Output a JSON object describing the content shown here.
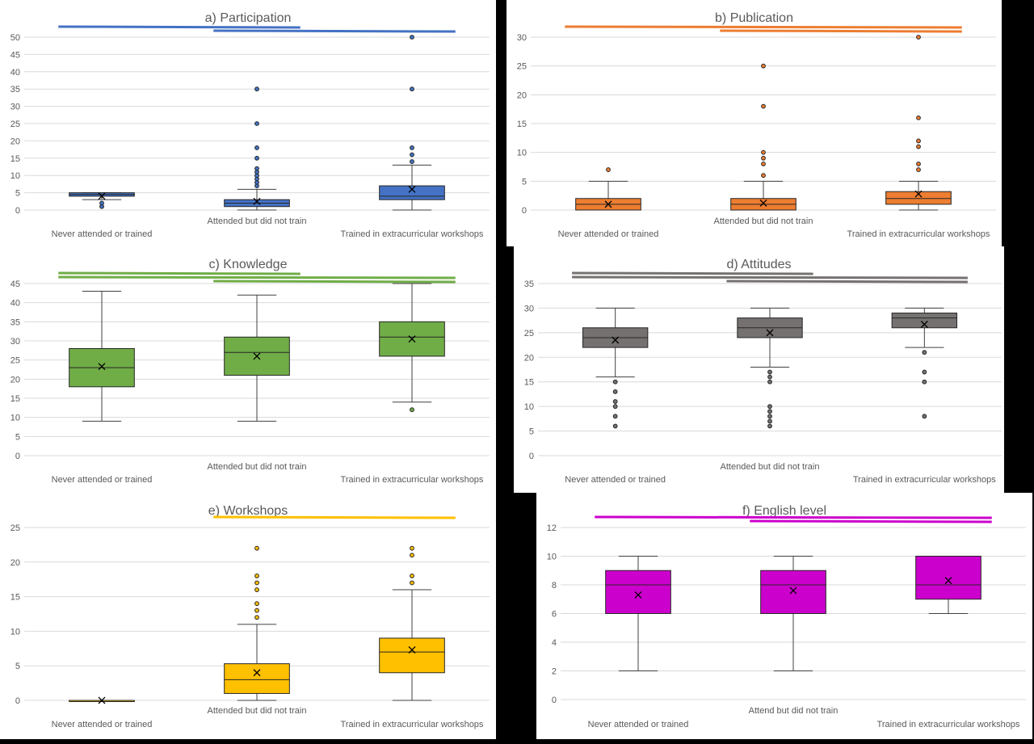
{
  "chart_data": [
    {
      "id": "a",
      "type": "box",
      "title": "a) Participation",
      "ylim": [
        0,
        50
      ],
      "yticks": [
        0,
        5,
        10,
        15,
        20,
        25,
        30,
        35,
        40,
        45,
        50
      ],
      "categories": [
        "Never attended or trained",
        "Attended but did not train",
        "Trained in extracurricular workshops"
      ],
      "color": "#4472C4",
      "edge": "#1F3864",
      "boxes": [
        {
          "min": 3,
          "q1": 4,
          "median": 4.5,
          "q3": 5,
          "max": 5,
          "mean": 4,
          "outliers": [
            1,
            2
          ]
        },
        {
          "min": 0,
          "q1": 1,
          "median": 2,
          "q3": 3,
          "max": 6,
          "mean": 2.5,
          "outliers": [
            7,
            8,
            9,
            10,
            11,
            12,
            15,
            18,
            25,
            35
          ]
        },
        {
          "min": 0,
          "q1": 3,
          "median": 4,
          "q3": 7,
          "max": 13,
          "mean": 6,
          "outliers": [
            14,
            16,
            18,
            35,
            50
          ]
        }
      ],
      "sig_lines": [
        {
          "from": 0,
          "to": 1
        },
        {
          "from": 1,
          "to": 2
        }
      ]
    },
    {
      "id": "b",
      "type": "box",
      "title": "b) Publication",
      "ylim": [
        0,
        30
      ],
      "yticks": [
        0,
        5,
        10,
        15,
        20,
        25,
        30
      ],
      "categories": [
        "Never attended or trained",
        "Attended but did not train",
        "Trained in extracurricular workshops"
      ],
      "color": "#ED7D31",
      "edge": "#843C0C",
      "boxes": [
        {
          "min": 0,
          "q1": 0,
          "median": 1,
          "q3": 2,
          "max": 5,
          "mean": 1,
          "outliers": [
            7
          ]
        },
        {
          "min": 0,
          "q1": 0,
          "median": 1,
          "q3": 2,
          "max": 5,
          "mean": 1.2,
          "outliers": [
            6,
            8,
            9,
            10,
            18,
            25
          ]
        },
        {
          "min": 0,
          "q1": 1,
          "median": 2,
          "q3": 3.2,
          "max": 5,
          "mean": 2.8,
          "outliers": [
            7,
            8,
            11,
            12,
            16,
            30
          ]
        }
      ],
      "sig_lines": [
        {
          "from": 0,
          "to": 2
        },
        {
          "from": 1,
          "to": 2
        }
      ]
    },
    {
      "id": "c",
      "type": "box",
      "title": "c) Knowledge",
      "ylim": [
        0,
        45
      ],
      "yticks": [
        0,
        5,
        10,
        15,
        20,
        25,
        30,
        35,
        40,
        45
      ],
      "categories": [
        "Never attended or trained",
        "Attended but did not train",
        "Trained in extracurricular workshops"
      ],
      "color": "#70AD47",
      "edge": "#385723",
      "boxes": [
        {
          "min": 9,
          "q1": 18,
          "median": 23,
          "q3": 28,
          "max": 43,
          "mean": 23.3,
          "outliers": []
        },
        {
          "min": 9,
          "q1": 21,
          "median": 27,
          "q3": 31,
          "max": 42,
          "mean": 26,
          "outliers": []
        },
        {
          "min": 14,
          "q1": 26,
          "median": 31,
          "q3": 35,
          "max": 45,
          "mean": 30.5,
          "outliers": [
            12
          ]
        }
      ],
      "sig_lines": [
        {
          "from": 0,
          "to": 1
        },
        {
          "from": 0,
          "to": 2
        },
        {
          "from": 1,
          "to": 2
        }
      ]
    },
    {
      "id": "d",
      "type": "box",
      "title": "d) Attitudes",
      "ylim": [
        0,
        35
      ],
      "yticks": [
        0,
        5,
        10,
        15,
        20,
        25,
        30,
        35
      ],
      "categories": [
        "Never attended or trained",
        "Attended but did not train",
        "Trained in extracurricular workshops"
      ],
      "color": "#767171",
      "edge": "#262626",
      "boxes": [
        {
          "min": 16,
          "q1": 22,
          "median": 24,
          "q3": 26,
          "max": 30,
          "mean": 23.5,
          "outliers": [
            6,
            8,
            10,
            11,
            13,
            15
          ]
        },
        {
          "min": 18,
          "q1": 24,
          "median": 26,
          "q3": 28,
          "max": 30,
          "mean": 25,
          "outliers": [
            6,
            7,
            8,
            9,
            10,
            15,
            16,
            17
          ]
        },
        {
          "min": 22,
          "q1": 26,
          "median": 28,
          "q3": 29,
          "max": 30,
          "mean": 26.7,
          "outliers": [
            8,
            15,
            17,
            21
          ]
        }
      ],
      "sig_lines": [
        {
          "from": 0,
          "to": 1
        },
        {
          "from": 0,
          "to": 2
        },
        {
          "from": 1,
          "to": 2
        }
      ]
    },
    {
      "id": "e",
      "type": "box",
      "title": "e) Workshops",
      "ylim": [
        0,
        25
      ],
      "yticks": [
        0,
        5,
        10,
        15,
        20,
        25
      ],
      "categories": [
        "Never attended or trained",
        "Attended but did not train",
        "Trained in extracurricular workshops"
      ],
      "color": "#FFC000",
      "edge": "#7F6000",
      "boxes": [
        {
          "min": 0,
          "q1": 0,
          "median": 0,
          "q3": 0,
          "max": 0,
          "mean": 0,
          "outliers": []
        },
        {
          "min": 0,
          "q1": 1,
          "median": 3,
          "q3": 5.3,
          "max": 11,
          "mean": 4,
          "outliers": [
            12,
            13,
            14,
            16,
            17,
            18,
            22
          ]
        },
        {
          "min": 0,
          "q1": 4,
          "median": 7,
          "q3": 9,
          "max": 16,
          "mean": 7.3,
          "outliers": [
            17,
            18,
            21,
            22
          ]
        }
      ],
      "sig_lines": [
        {
          "from": 1,
          "to": 2
        }
      ]
    },
    {
      "id": "f",
      "type": "box",
      "title": "f) English level",
      "ylim": [
        0,
        12
      ],
      "yticks": [
        0,
        2,
        4,
        6,
        8,
        10,
        12
      ],
      "categories": [
        "Never attended or trained",
        "Attend but did not train",
        "Trained in extracurricular workshops"
      ],
      "color": "#CC00CC",
      "edge": "#3F003F",
      "boxes": [
        {
          "min": 2,
          "q1": 6,
          "median": 8,
          "q3": 9,
          "max": 10,
          "mean": 7.3,
          "outliers": []
        },
        {
          "min": 2,
          "q1": 6,
          "median": 8,
          "q3": 9,
          "max": 10,
          "mean": 7.6,
          "outliers": []
        },
        {
          "min": 6,
          "q1": 7,
          "median": 8,
          "q3": 10,
          "max": 10,
          "mean": 8.3,
          "outliers": []
        }
      ],
      "sig_lines": [
        {
          "from": 0,
          "to": 2
        },
        {
          "from": 1,
          "to": 2
        }
      ]
    }
  ]
}
